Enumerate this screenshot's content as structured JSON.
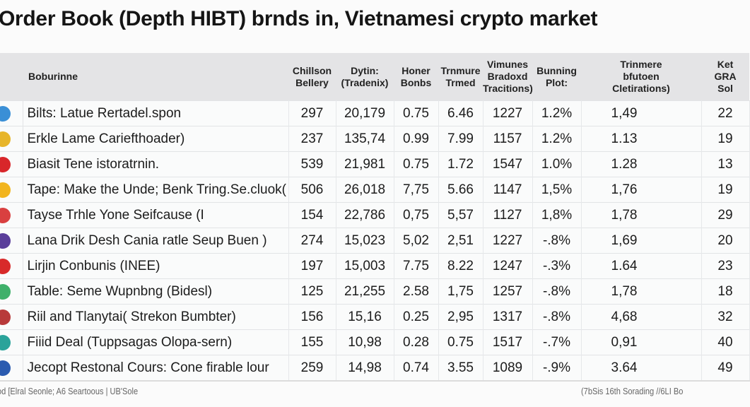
{
  "title": "Order Book (Depth HIBT) brnds in, Vietnamesi crypto market",
  "columns": {
    "name": "Boburinne",
    "c1": [
      "Chillson",
      "Bellery"
    ],
    "c2": [
      "Dytin:",
      "(Tradenix)"
    ],
    "c3": [
      "Honer",
      "Bonbs"
    ],
    "c4": [
      "Trnmure",
      "Trmed"
    ],
    "c5": [
      "Vimunes",
      "Bradoxd",
      "Tracitions)"
    ],
    "c6": [
      "Bunning",
      "Plot:"
    ],
    "c7": [
      "Trinmere",
      "bfutoen",
      "Cletirations)"
    ],
    "c8": [
      "Ket",
      "GRA",
      "Sol"
    ]
  },
  "rows": [
    {
      "icon": "blue-globe-icon",
      "color": "#3a8fd6",
      "name": "Bilts: Latue Rertadel.spon",
      "v": [
        "297",
        "20,179",
        "0.75",
        "6.46",
        "1227",
        "1.2%",
        "1,49",
        "22"
      ]
    },
    {
      "icon": "chrome-icon",
      "color": "#e7b52a",
      "name": "Erkle Lame Cariefthoader)",
      "v": [
        "237",
        "135,74",
        "0.99",
        "7.99",
        "1157",
        "1.2%",
        "1.13",
        "19"
      ]
    },
    {
      "icon": "red-circle-icon",
      "color": "#d8262a",
      "name": "Biasit Tene istoratrnin.",
      "v": [
        "539",
        "21,981",
        "0.75",
        "1.72",
        "1547",
        "1.0%",
        "1.28",
        "13"
      ]
    },
    {
      "icon": "yellow-coin-icon",
      "color": "#f2b51e",
      "name": "Tape: Make the Unde; Benk Tring.Se.cluok(",
      "v": [
        "506",
        "26,018",
        "7,75",
        "5.66",
        "1147",
        "1,5%",
        "1,76",
        "19"
      ]
    },
    {
      "icon": "flag-icon",
      "color": "#d94040",
      "name": "Tayse Trhle Yone Seifcause (I",
      "v": [
        "154",
        "22,786",
        "0,75",
        "5,57",
        "1127",
        "1,8%",
        "1,78",
        "29"
      ]
    },
    {
      "icon": "purple-badge-icon",
      "color": "#5a3e9a",
      "name": "Lana Drik Desh Cania ratle Seup Buen )",
      "v": [
        "274",
        "15,023",
        "5,02",
        "2,51",
        "1227",
        "-.8%",
        "1,69",
        "20"
      ]
    },
    {
      "icon": "italy-flag-icon",
      "color": "#d82a2a",
      "name": "Lirjin Conbunis (INEE)",
      "v": [
        "197",
        "15,003",
        "7.75",
        "8.22",
        "1247",
        "-.3%",
        "1.64",
        "23"
      ]
    },
    {
      "icon": "play-arrow-icon",
      "color": "#3fb06a",
      "name": "Table: Seme Wupnbng (Bidesl)",
      "v": [
        "125",
        "21,255",
        "2.58",
        "1,75",
        "1257",
        "-.8%",
        "1,78",
        "18"
      ]
    },
    {
      "icon": "shield-icon",
      "color": "#b83a3a",
      "name": "Riil and Tlanytai( Strekon Bumbter)",
      "v": [
        "156",
        "15,16",
        "0.25",
        "2,95",
        "1317",
        "-.8%",
        "4,68",
        "32"
      ]
    },
    {
      "icon": "teal-book-icon",
      "color": "#2aa39a",
      "name": "Fiiid Deal (Tuppsagas Olopa-sern)",
      "v": [
        "155",
        "10,98",
        "0.28",
        "0.75",
        "1517",
        "-.7%",
        "0,91",
        "40"
      ]
    },
    {
      "icon": "red-blue-flag-icon",
      "color": "#2a5bb0",
      "name": "Jecopt Restonal Cours: Cone firable lour",
      "v": [
        "259",
        "14,98",
        "0.74",
        "3.55",
        "1089",
        "-.9%",
        "3.64",
        "49"
      ]
    }
  ],
  "footer": {
    "left": "od [Elral Seonle; A6 Seartoous | UB'Sole",
    "right": "(7bSis 16th Sorading //6LI Bo"
  }
}
